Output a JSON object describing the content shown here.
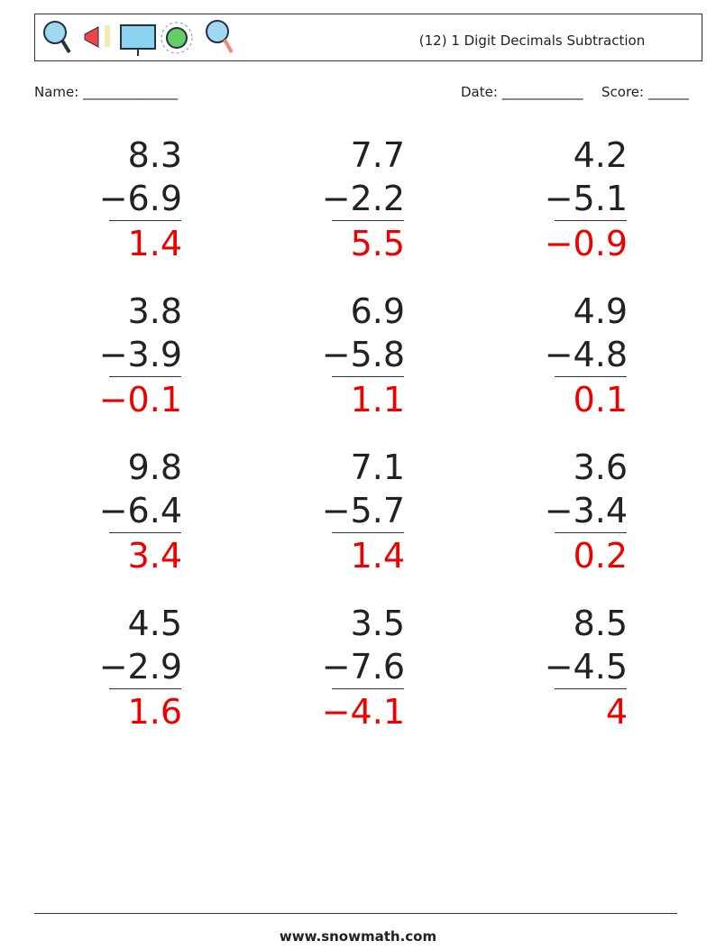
{
  "header": {
    "title": "(12) 1 Digit Decimals Subtraction"
  },
  "fields": {
    "name": "Name: ______________",
    "date": "Date: ____________",
    "score": "Score: ______"
  },
  "problems": [
    {
      "top": "8.3",
      "bottom": "−6.9",
      "answer": "1.4"
    },
    {
      "top": "7.7",
      "bottom": "−2.2",
      "answer": "5.5"
    },
    {
      "top": "4.2",
      "bottom": "−5.1",
      "answer": "−0.9"
    },
    {
      "top": "3.8",
      "bottom": "−3.9",
      "answer": "−0.1"
    },
    {
      "top": "6.9",
      "bottom": "−5.8",
      "answer": "1.1"
    },
    {
      "top": "4.9",
      "bottom": "−4.8",
      "answer": "0.1"
    },
    {
      "top": "9.8",
      "bottom": "−6.4",
      "answer": "3.4"
    },
    {
      "top": "7.1",
      "bottom": "−5.7",
      "answer": "1.4"
    },
    {
      "top": "3.6",
      "bottom": "−3.4",
      "answer": "0.2"
    },
    {
      "top": "4.5",
      "bottom": "−2.9",
      "answer": "1.6"
    },
    {
      "top": "3.5",
      "bottom": "−7.6",
      "answer": "−4.1"
    },
    {
      "top": "8.5",
      "bottom": "−4.5",
      "answer": "4"
    }
  ],
  "footer": {
    "site": "www.snowmath.com"
  }
}
